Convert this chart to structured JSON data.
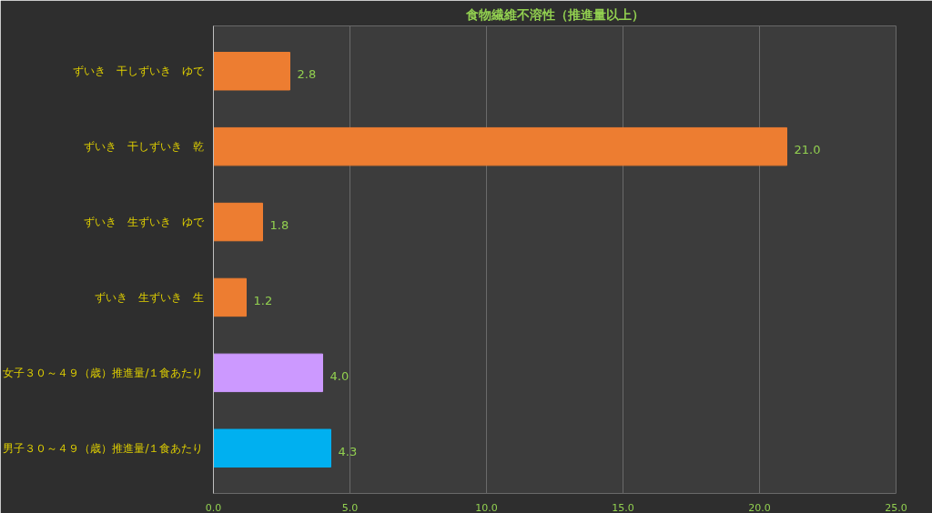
{
  "chart_data": {
    "type": "bar",
    "orientation": "horizontal",
    "title": "食物繊維不溶性（推進量以上）",
    "categories": [
      "ずいき　干しずいき　ゆで",
      "ずいき　干しずいき　乾",
      "ずいき　生ずいき　ゆで",
      "ずいき　生ずいき　生",
      "女子３０～４９（歳）推進量/１食あたり",
      "男子３０～４９（歳）推進量/１食あたり"
    ],
    "values": [
      2.8,
      21.0,
      1.8,
      1.2,
      4.0,
      4.3
    ],
    "value_labels": [
      "2.8",
      "21.0",
      "1.8",
      "1.2",
      "4.0",
      "4.3"
    ],
    "colors": [
      "#ed7d31",
      "#ed7d31",
      "#ed7d31",
      "#ed7d31",
      "#cc99ff",
      "#00b0f0"
    ],
    "xlim": [
      0,
      25
    ],
    "xticks": [
      {
        "value": 0,
        "label": "0.0"
      },
      {
        "value": 5,
        "label": "5.0"
      },
      {
        "value": 10,
        "label": "10.0"
      },
      {
        "value": 15,
        "label": "15.0"
      },
      {
        "value": 20,
        "label": "20.0"
      },
      {
        "value": 25,
        "label": "25.0"
      }
    ],
    "grid": "x"
  }
}
